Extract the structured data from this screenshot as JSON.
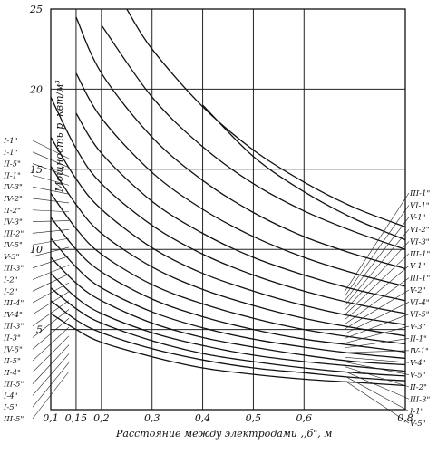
{
  "chart_data": {
    "type": "line",
    "title": "",
    "xlabel": "Расстояние между электродами ,,б\", м",
    "ylabel": "Мощность p, квт/м³",
    "xlim": [
      0.1,
      0.8
    ],
    "ylim": [
      0,
      25
    ],
    "x_ticks": [
      {
        "value": 0.1,
        "label": "0,1"
      },
      {
        "value": 0.15,
        "label": "0,15"
      },
      {
        "value": 0.2,
        "label": "0,2"
      },
      {
        "value": 0.3,
        "label": "0,3"
      },
      {
        "value": 0.4,
        "label": "0,4"
      },
      {
        "value": 0.5,
        "label": "0,5"
      },
      {
        "value": 0.6,
        "label": "0,6"
      },
      {
        "value": 0.8,
        "label": "0,8"
      }
    ],
    "y_ticks": [
      {
        "value": 5,
        "label": "5"
      },
      {
        "value": 10,
        "label": "10"
      },
      {
        "value": 15,
        "label": "15"
      },
      {
        "value": 20,
        "label": "20"
      },
      {
        "value": 25,
        "label": "25"
      }
    ],
    "grid": true,
    "left_labels": [
      "I-1\"",
      "I-1\"",
      "II-5\"",
      "II-1\"",
      "IV-3\"",
      "IV-2\"",
      "II-2\"",
      "IV-3\"",
      "III-2\"",
      "IV-5\"",
      "V-3\"",
      "III-3\"",
      "I-2\"",
      "I-2\"",
      "III-4\"",
      "IV-4\"",
      "III-3\"",
      "II-3\"",
      "IV-5\"",
      "II-5\"",
      "II-4\"",
      "III-5\"",
      "I-4\"",
      "I-5\"",
      "III-5\""
    ],
    "right_labels": [
      "III-1\"",
      "VI-1\"",
      "V-1\"",
      "VI-2\"",
      "VI-3\"",
      "III-1\"",
      "V-1\"",
      "III-1\"",
      "V-2\"",
      "VI-4\"",
      "VI-5\"",
      "V-3\"",
      "II-1\"",
      "IV-1\"",
      "V-4\"",
      "V-5\"",
      "II-2\"",
      "III-3\"",
      "I-1\"",
      "V-5\""
    ],
    "series": [
      {
        "x": [
          0.1,
          0.15,
          0.2,
          0.3,
          0.4,
          0.5,
          0.6,
          0.7,
          0.8
        ],
        "y": [
          6.0,
          5.0,
          4.2,
          3.3,
          2.6,
          2.2,
          1.9,
          1.7,
          1.5
        ]
      },
      {
        "x": [
          0.1,
          0.15,
          0.2,
          0.3,
          0.4,
          0.5,
          0.6,
          0.7,
          0.8
        ],
        "y": [
          6.8,
          5.6,
          4.8,
          3.8,
          3.1,
          2.6,
          2.3,
          2.0,
          1.8
        ]
      },
      {
        "x": [
          0.1,
          0.15,
          0.2,
          0.3,
          0.4,
          0.5,
          0.6,
          0.7,
          0.8
        ],
        "y": [
          7.6,
          6.3,
          5.4,
          4.3,
          3.5,
          3.0,
          2.6,
          2.3,
          2.1
        ]
      },
      {
        "x": [
          0.1,
          0.15,
          0.2,
          0.3,
          0.4,
          0.5,
          0.6,
          0.7,
          0.8
        ],
        "y": [
          8.5,
          7.0,
          6.0,
          4.8,
          4.0,
          3.4,
          3.0,
          2.7,
          2.4
        ]
      },
      {
        "x": [
          0.1,
          0.15,
          0.2,
          0.3,
          0.4,
          0.5,
          0.6,
          0.7,
          0.8
        ],
        "y": [
          9.5,
          7.9,
          6.8,
          5.4,
          4.5,
          3.9,
          3.4,
          3.0,
          2.8
        ]
      },
      {
        "x": [
          0.1,
          0.15,
          0.2,
          0.3,
          0.4,
          0.5,
          0.6,
          0.7,
          0.8
        ],
        "y": [
          10.7,
          8.9,
          7.6,
          6.1,
          5.1,
          4.4,
          3.9,
          3.5,
          3.2
        ]
      },
      {
        "x": [
          0.1,
          0.15,
          0.2,
          0.3,
          0.4,
          0.5,
          0.6,
          0.7,
          0.8
        ],
        "y": [
          12.0,
          10.0,
          8.6,
          6.9,
          5.8,
          5.0,
          4.4,
          4.0,
          3.6
        ]
      },
      {
        "x": [
          0.1,
          0.15,
          0.2,
          0.3,
          0.4,
          0.5,
          0.6,
          0.7,
          0.8
        ],
        "y": [
          13.5,
          11.3,
          9.7,
          7.8,
          6.6,
          5.7,
          5.0,
          4.5,
          4.1
        ]
      },
      {
        "x": [
          0.1,
          0.15,
          0.2,
          0.3,
          0.4,
          0.5,
          0.6,
          0.7,
          0.8
        ],
        "y": [
          15.2,
          12.8,
          11.0,
          8.9,
          7.5,
          6.5,
          5.7,
          5.1,
          4.6
        ]
      },
      {
        "x": [
          0.1,
          0.15,
          0.2,
          0.3,
          0.4,
          0.5,
          0.6,
          0.7,
          0.8
        ],
        "y": [
          17.0,
          14.4,
          12.5,
          10.1,
          8.5,
          7.4,
          6.5,
          5.8,
          5.3
        ]
      },
      {
        "x": [
          0.1,
          0.15,
          0.2,
          0.3,
          0.4,
          0.5,
          0.6,
          0.7,
          0.8
        ],
        "y": [
          19.5,
          16.3,
          14.1,
          11.5,
          9.7,
          8.4,
          7.4,
          6.6,
          6.0
        ]
      },
      {
        "x": [
          0.15,
          0.2,
          0.3,
          0.4,
          0.5,
          0.6,
          0.7,
          0.8
        ],
        "y": [
          18.5,
          16.0,
          13.0,
          11.0,
          9.5,
          8.4,
          7.5,
          6.8
        ]
      },
      {
        "x": [
          0.15,
          0.2,
          0.3,
          0.4,
          0.5,
          0.6,
          0.7,
          0.8
        ],
        "y": [
          21.0,
          18.2,
          14.8,
          12.5,
          10.8,
          9.5,
          8.5,
          7.7
        ]
      },
      {
        "x": [
          0.15,
          0.2,
          0.3,
          0.4,
          0.5,
          0.6,
          0.7,
          0.8
        ],
        "y": [
          24.5,
          21.0,
          17.0,
          14.3,
          12.3,
          10.8,
          9.7,
          8.8
        ]
      },
      {
        "x": [
          0.2,
          0.3,
          0.4,
          0.5,
          0.6,
          0.7,
          0.8
        ],
        "y": [
          24.0,
          19.5,
          16.4,
          14.1,
          12.4,
          11.1,
          10.0
        ]
      },
      {
        "x": [
          0.25,
          0.3,
          0.4,
          0.5,
          0.6,
          0.7,
          0.8
        ],
        "y": [
          25.0,
          22.5,
          18.9,
          16.2,
          14.2,
          12.6,
          11.4
        ]
      },
      {
        "x": [
          0.4,
          0.5,
          0.6,
          0.7,
          0.8
        ],
        "y": [
          19.0,
          15.8,
          13.6,
          11.9,
          10.6
        ]
      }
    ]
  }
}
